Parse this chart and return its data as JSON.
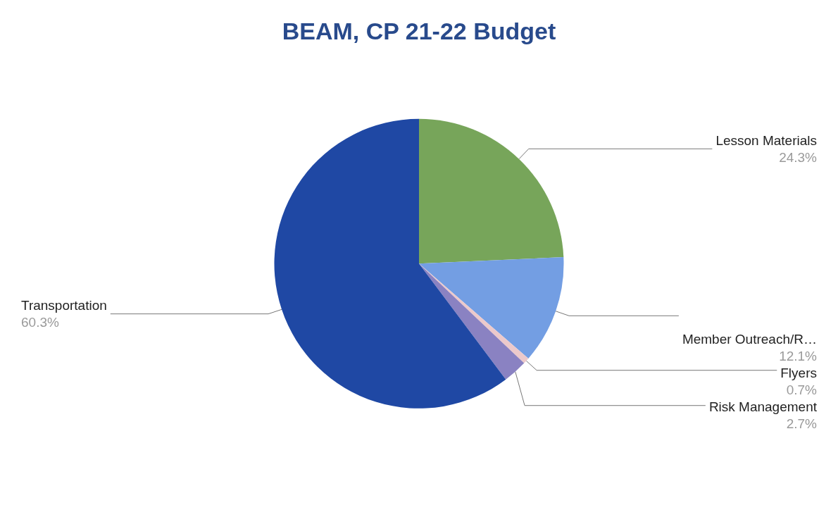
{
  "chart_data": {
    "type": "pie",
    "title": "BEAM, CP 21-22 Budget",
    "categories": [
      "Lesson Materials",
      "Member Outreach/R…",
      "Flyers",
      "Risk Management",
      "Transportation"
    ],
    "values": [
      24.3,
      12.1,
      0.7,
      2.7,
      60.3
    ],
    "colors": [
      "#77a55a",
      "#739ee3",
      "#ecc9cb",
      "#8a82c2",
      "#1f48a4"
    ],
    "value_labels": [
      "24.3%",
      "12.1%",
      "0.7%",
      "2.7%",
      "60.3%"
    ]
  }
}
